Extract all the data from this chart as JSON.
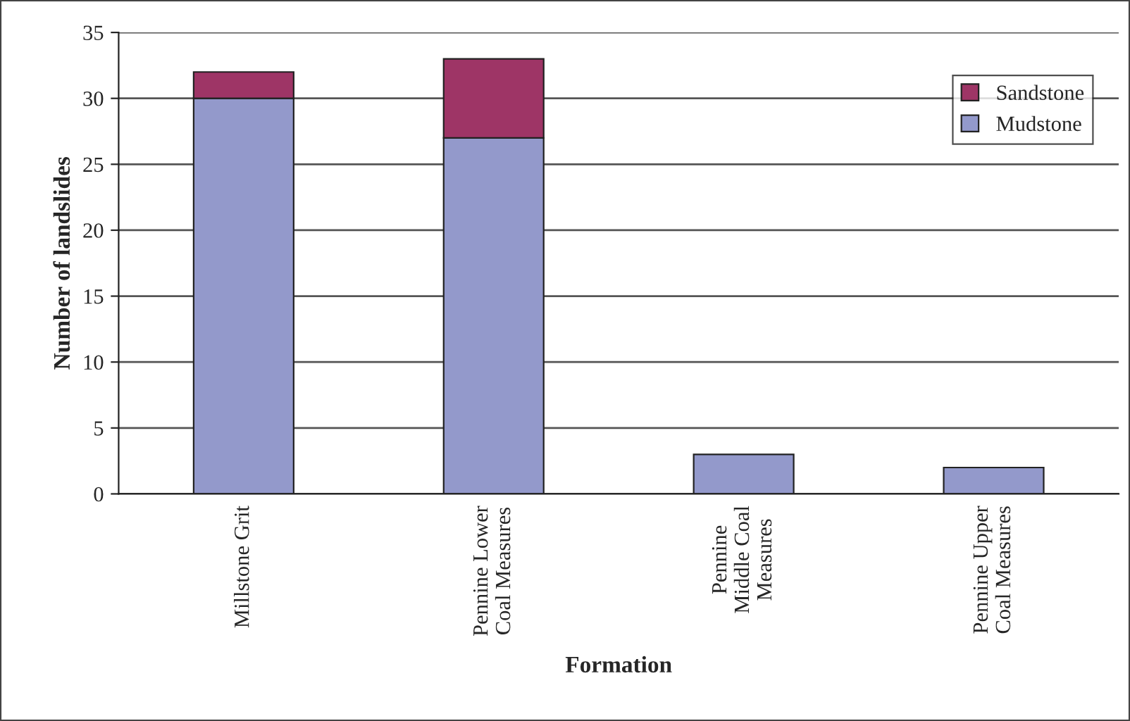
{
  "chart_data": {
    "type": "bar",
    "stacked": true,
    "xlabel": "Formation",
    "ylabel": "Number of landslides",
    "categories": [
      "Millstone Grit",
      "Pennine Lower\nCoal Measures",
      "Pennine\nMiddle Coal\nMeasures",
      "Pennine Upper\nCoal Measures"
    ],
    "series": [
      {
        "name": "Mudstone",
        "color": "#9399cb",
        "values": [
          30,
          27,
          3,
          2
        ]
      },
      {
        "name": "Sandstone",
        "color": "#9e3566",
        "values": [
          2,
          6,
          null,
          null
        ]
      }
    ],
    "ylim": [
      0,
      35
    ],
    "yticks": [
      0,
      5,
      10,
      15,
      20,
      25,
      30,
      35
    ],
    "grid": "y",
    "legend": "top right"
  }
}
